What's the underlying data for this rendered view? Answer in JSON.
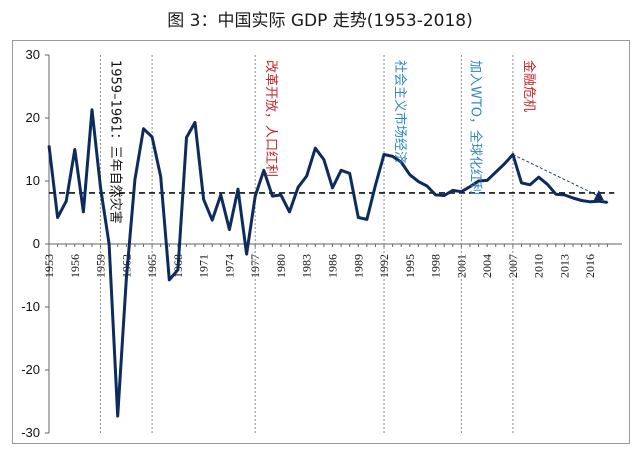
{
  "title": "图 3：中国实际 GDP 走势(1953-2018)",
  "chart_data": {
    "type": "line",
    "title": "图 3：中国实际 GDP 走势(1953-2018)",
    "xlabel": "",
    "ylabel": "",
    "ylim": [
      -30,
      30
    ],
    "yticks": [
      -30,
      -20,
      -10,
      0,
      10,
      20,
      30
    ],
    "xticks": [
      "1953",
      "1956",
      "1959",
      "1962",
      "1965",
      "1968",
      "1971",
      "1974",
      "1977",
      "1980",
      "1983",
      "1986",
      "1989",
      "1992",
      "1995",
      "1998",
      "2001",
      "2004",
      "2007",
      "2010",
      "2013",
      "2016"
    ],
    "grid": false,
    "series": [
      {
        "color": "#0d2b5c",
        "x": [
          1953,
          1954,
          1955,
          1956,
          1957,
          1958,
          1959,
          1960,
          1961,
          1962,
          1963,
          1964,
          1965,
          1966,
          1967,
          1968,
          1969,
          1970,
          1971,
          1972,
          1973,
          1974,
          1975,
          1976,
          1977,
          1978,
          1979,
          1980,
          1981,
          1982,
          1983,
          1984,
          1985,
          1986,
          1987,
          1988,
          1989,
          1990,
          1991,
          1992,
          1993,
          1994,
          1995,
          1996,
          1997,
          1998,
          1999,
          2000,
          2001,
          2002,
          2003,
          2004,
          2005,
          2006,
          2007,
          2008,
          2009,
          2010,
          2011,
          2012,
          2013,
          2014,
          2015,
          2016,
          2017,
          2018
        ],
        "values": [
          15.6,
          4.2,
          6.8,
          15.0,
          5.1,
          21.3,
          9.0,
          0.0,
          -27.3,
          -5.6,
          10.2,
          18.3,
          17.0,
          10.7,
          -5.7,
          -4.1,
          16.9,
          19.3,
          7.1,
          3.8,
          7.8,
          2.3,
          8.7,
          -1.6,
          7.6,
          11.7,
          7.6,
          7.8,
          5.1,
          9.0,
          10.8,
          15.2,
          13.4,
          8.9,
          11.7,
          11.2,
          4.2,
          3.9,
          9.3,
          14.2,
          13.9,
          13.0,
          11.0,
          9.9,
          9.2,
          7.8,
          7.7,
          8.5,
          8.3,
          9.1,
          10.0,
          10.1,
          11.4,
          12.7,
          14.2,
          9.7,
          9.4,
          10.6,
          9.5,
          7.9,
          7.8,
          7.3,
          6.9,
          6.7,
          6.8,
          6.6
        ]
      }
    ],
    "reference_line": {
      "y": 8.1,
      "style": "dashed",
      "color": "#111111"
    },
    "trend_arrow": {
      "from": [
        2007,
        14.2
      ],
      "to": [
        2017,
        7.6
      ],
      "style": "dashed",
      "color": "#2b3f7a"
    },
    "vertical_markers": [
      {
        "year": 1959
      },
      {
        "year": 1965
      },
      {
        "year": 1977
      },
      {
        "year": 1992
      },
      {
        "year": 2001
      },
      {
        "year": 2007
      }
    ],
    "annotations": [
      {
        "text": "1959–1961：三年自然灾害",
        "x": 1960.3,
        "color": "#111111"
      },
      {
        "text": "改革开放，人口红利",
        "x": 1978.4,
        "color": "#c0282d"
      },
      {
        "text": "社会主义市场经济",
        "x": 1993.4,
        "color": "#2e86c1"
      },
      {
        "text": "加入WTO，全球化红利",
        "x": 2002.2,
        "color": "#2e86c1"
      },
      {
        "text": "金融危机",
        "x": 2008.4,
        "color": "#c0282d"
      }
    ]
  }
}
